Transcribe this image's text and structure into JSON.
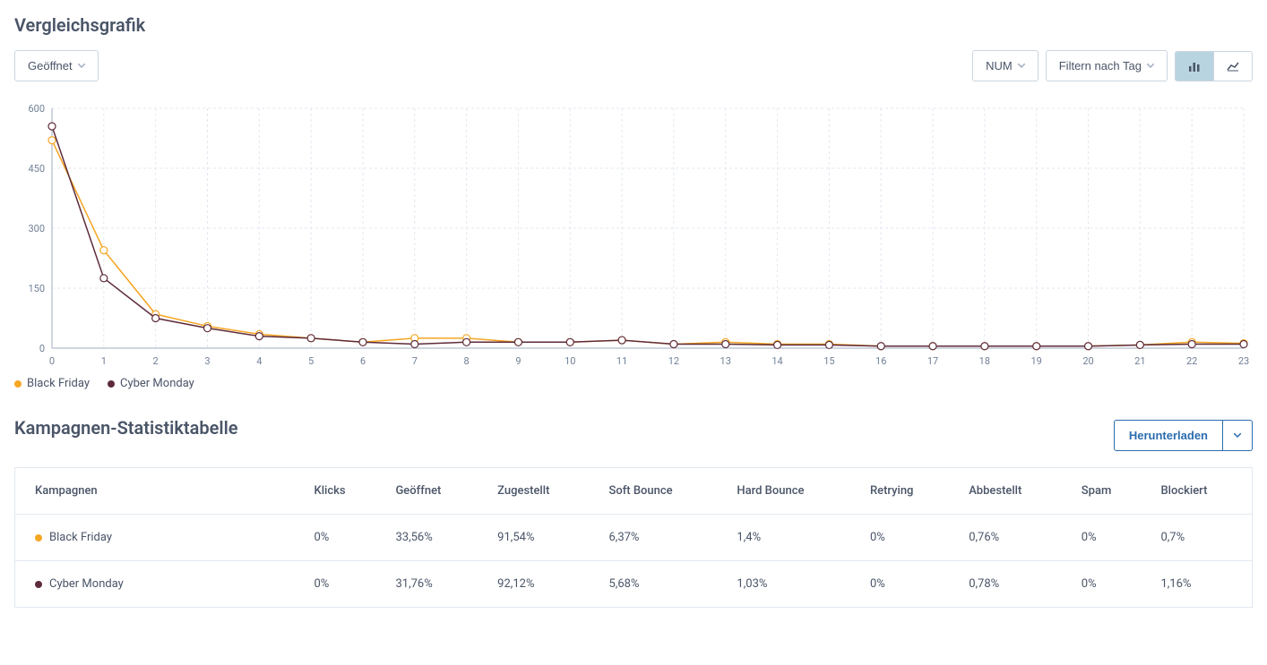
{
  "chart_section": {
    "title": "Vergleichsgrafik",
    "metric_dropdown": {
      "label": "Geöffnet"
    },
    "num_dropdown": {
      "label": "NUM"
    },
    "filter_dropdown": {
      "label": "Filtern nach Tag"
    },
    "chart": {
      "type": "line",
      "x_labels": [
        "0",
        "1",
        "2",
        "3",
        "4",
        "5",
        "6",
        "7",
        "8",
        "9",
        "10",
        "11",
        "12",
        "13",
        "14",
        "15",
        "16",
        "17",
        "18",
        "19",
        "20",
        "21",
        "22",
        "23"
      ],
      "y_ticks": [
        0,
        150,
        300,
        450,
        600
      ],
      "ylim": [
        0,
        600
      ],
      "grid_color": "#e2e8f0",
      "axis_color": "#a0aec0",
      "tick_fontsize": 11,
      "tick_color": "#718096",
      "background_color": "#ffffff",
      "series": [
        {
          "name": "Black Friday",
          "color": "#f5a623",
          "marker_fill": "#ffffff",
          "marker_stroke": "#f5a623",
          "marker_size": 4,
          "line_width": 1.5,
          "values": [
            520,
            245,
            85,
            55,
            35,
            25,
            15,
            25,
            25,
            15,
            15,
            20,
            10,
            15,
            10,
            10,
            5,
            5,
            5,
            5,
            5,
            8,
            15,
            12
          ]
        },
        {
          "name": "Cyber Monday",
          "color": "#5e2b3b",
          "marker_fill": "#ffffff",
          "marker_stroke": "#5e2b3b",
          "marker_size": 4,
          "line_width": 1.5,
          "values": [
            555,
            175,
            75,
            50,
            30,
            25,
            15,
            10,
            15,
            15,
            15,
            20,
            10,
            10,
            8,
            8,
            5,
            5,
            5,
            5,
            5,
            8,
            10,
            10
          ]
        }
      ]
    },
    "legend": [
      {
        "label": "Black Friday",
        "color": "#f5a623"
      },
      {
        "label": "Cyber Monday",
        "color": "#5e2b3b"
      }
    ]
  },
  "table_section": {
    "title": "Kampagnen-Statistiktabelle",
    "download_label": "Herunterladen",
    "columns": [
      "Kampagnen",
      "Klicks",
      "Geöffnet",
      "Zugestellt",
      "Soft Bounce",
      "Hard Bounce",
      "Retrying",
      "Abbestellt",
      "Spam",
      "Blockiert"
    ],
    "rows": [
      {
        "color": "#f5a623",
        "name": "Black Friday",
        "cells": [
          "0%",
          "33,56%",
          "91,54%",
          "6,37%",
          "1,4%",
          "0%",
          "0,76%",
          "0%",
          "0,7%"
        ]
      },
      {
        "color": "#5e2b3b",
        "name": "Cyber Monday",
        "cells": [
          "0%",
          "31,76%",
          "92,12%",
          "5,68%",
          "1,03%",
          "0%",
          "0,78%",
          "0%",
          "1,16%"
        ]
      }
    ]
  }
}
